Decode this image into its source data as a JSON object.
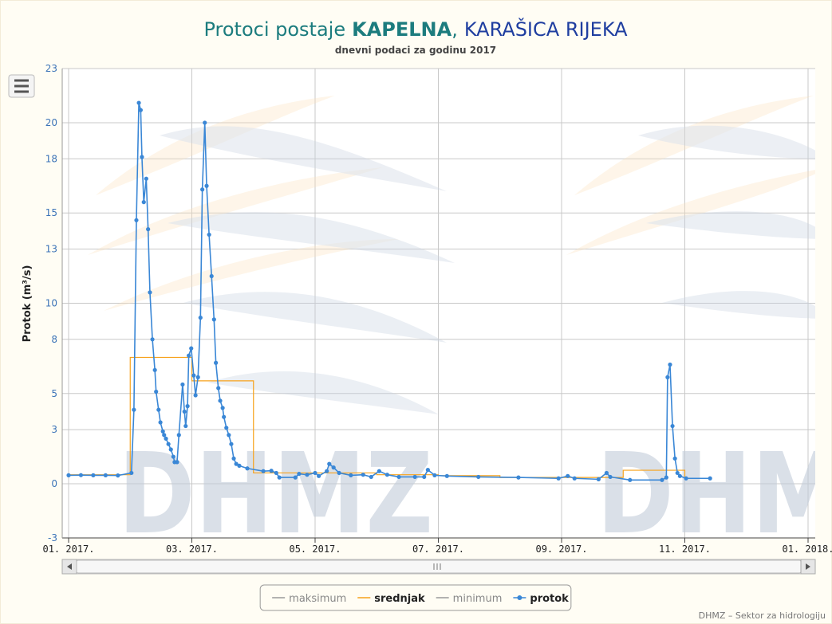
{
  "chart_data": {
    "type": "line",
    "title": [
      "Protoci postaje",
      "KAPELNA",
      ",",
      "KARAŠICA RIJEKA"
    ],
    "subtitle": "dnevni podaci za godinu 2017",
    "y_label": "Protok (m³/s)",
    "credits": "DHMZ – Sektor za hidrologiju",
    "watermark": "DHMZ",
    "xlim": [
      1,
      13
    ],
    "xticks": [
      {
        "value": 1,
        "label": "01. 2017."
      },
      {
        "value": 3,
        "label": "03. 2017."
      },
      {
        "value": 5,
        "label": "05. 2017."
      },
      {
        "value": 7,
        "label": "07. 2017."
      },
      {
        "value": 9,
        "label": "09. 2017."
      },
      {
        "value": 11,
        "label": "11. 2017."
      },
      {
        "value": 13,
        "label": "01. 2018."
      }
    ],
    "ylim": [
      -3,
      23
    ],
    "yticks": [
      -3,
      0,
      3,
      5,
      8,
      10,
      13,
      15,
      18,
      20,
      23
    ],
    "grid": true,
    "legend": "bottom",
    "series": [
      {
        "name": "maksimum",
        "color": "#666666",
        "visible": false,
        "x": [],
        "values": []
      },
      {
        "name": "srednjak",
        "color": "#f7a21b",
        "visible": true,
        "step": "left",
        "x": [
          1,
          2,
          3,
          4,
          5,
          6,
          7,
          8,
          9,
          10,
          11
        ],
        "values": [
          0.5,
          7,
          5.7,
          0.6,
          0.6,
          0.5,
          0.45,
          0.35,
          0.35,
          0.75,
          0.3
        ]
      },
      {
        "name": "minimum",
        "color": "#666666",
        "visible": false,
        "x": [],
        "values": []
      },
      {
        "name": "protok",
        "color": "#3a87d6",
        "visible": true,
        "marker": true,
        "x": [
          1,
          1.2,
          1.4,
          1.6,
          1.8,
          2.02,
          2.06,
          2.1,
          2.14,
          2.17,
          2.19,
          2.22,
          2.26,
          2.29,
          2.32,
          2.36,
          2.4,
          2.42,
          2.46,
          2.49,
          2.53,
          2.55,
          2.58,
          2.62,
          2.66,
          2.7,
          2.72,
          2.76,
          2.79,
          2.85,
          2.88,
          2.9,
          2.93,
          2.95,
          2.99,
          3.03,
          3.06,
          3.1,
          3.14,
          3.17,
          3.21,
          3.24,
          3.28,
          3.32,
          3.36,
          3.39,
          3.43,
          3.46,
          3.5,
          3.52,
          3.56,
          3.6,
          3.64,
          3.68,
          3.72,
          3.77,
          3.9,
          4.16,
          4.29,
          4.37,
          4.42,
          4.68,
          4.74,
          4.87,
          5,
          5.06,
          5.19,
          5.23,
          5.3,
          5.39,
          5.58,
          5.78,
          5.91,
          6.04,
          6.17,
          6.36,
          6.62,
          6.77,
          6.83,
          6.94,
          7.14,
          7.65,
          8.3,
          8.95,
          9.1,
          9.21,
          9.6,
          9.73,
          9.79,
          10.11,
          10.63,
          10.7,
          10.72,
          10.76,
          10.8,
          10.84,
          10.88,
          10.92,
          11.02,
          11.41
        ],
        "values": [
          0.47,
          0.48,
          0.47,
          0.47,
          0.46,
          0.6,
          4.1,
          14.6,
          21.1,
          20.7,
          18.1,
          15.6,
          16.9,
          14.1,
          10.6,
          8,
          6.3,
          5.1,
          4.1,
          3.4,
          2.9,
          2.7,
          2.5,
          2.2,
          1.9,
          1.5,
          1.2,
          1.2,
          2.7,
          5.5,
          4,
          3.2,
          4.3,
          7.1,
          7.5,
          6,
          4.9,
          5.9,
          9.2,
          16.3,
          20,
          16.5,
          13.8,
          11.5,
          9.1,
          6.7,
          5.3,
          4.6,
          4.2,
          3.7,
          3.1,
          2.7,
          2.2,
          1.4,
          1.1,
          1,
          0.85,
          0.7,
          0.72,
          0.6,
          0.35,
          0.35,
          0.55,
          0.5,
          0.6,
          0.43,
          0.7,
          1.1,
          0.9,
          0.6,
          0.47,
          0.5,
          0.38,
          0.7,
          0.5,
          0.38,
          0.38,
          0.38,
          0.77,
          0.47,
          0.43,
          0.38,
          0.35,
          0.3,
          0.43,
          0.3,
          0.25,
          0.6,
          0.38,
          0.21,
          0.21,
          0.35,
          5.9,
          6.6,
          3.2,
          1.4,
          0.6,
          0.43,
          0.3,
          0.3
        ]
      }
    ]
  }
}
